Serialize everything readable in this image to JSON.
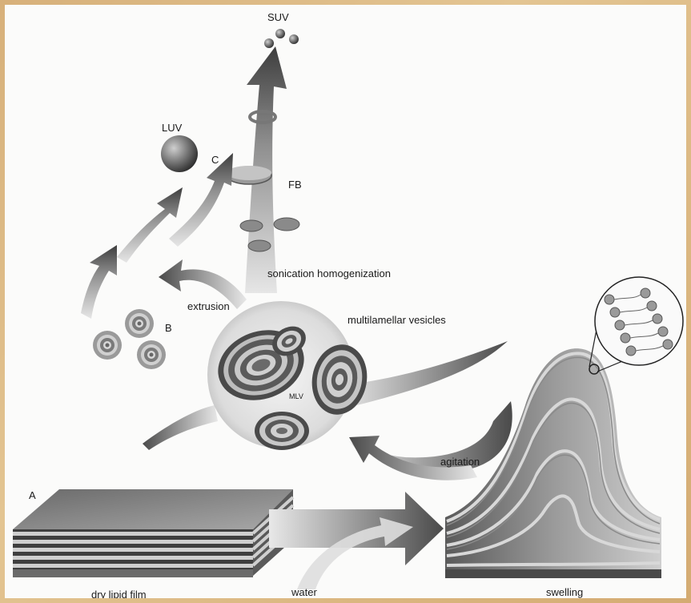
{
  "labels": {
    "suv": "SUV",
    "luv": "LUV",
    "c": "C",
    "fb": "FB",
    "sonication": "sonication homogenization",
    "extrusion": "extrusion",
    "b": "B",
    "multilamellar": "multilamellar vesicles",
    "mlv": "MLV",
    "agitation": "agitation",
    "a": "A",
    "dry_film": "dry lipid film",
    "water": "water",
    "swelling": "swelling"
  },
  "colors": {
    "frame": "#d9b98a",
    "background": "#fbfbfa",
    "dark": "#3a3a3a",
    "mid": "#8a8a8a",
    "light": "#d6d6d6"
  }
}
